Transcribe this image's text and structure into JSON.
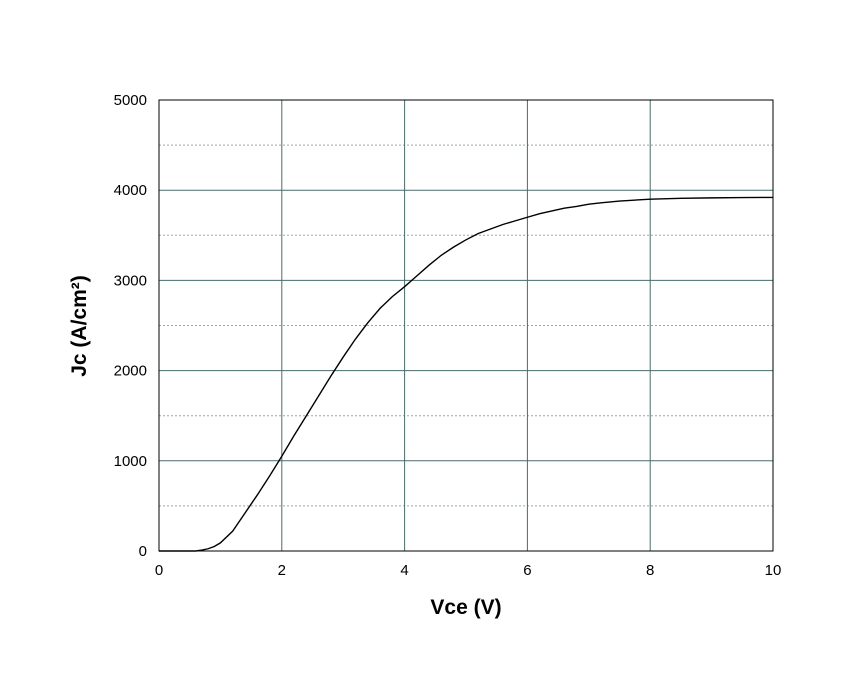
{
  "chart_data": {
    "type": "line",
    "title": "",
    "xlabel": "Vce (V)",
    "ylabel": "Jc (A/cm²)",
    "xlim": [
      0,
      10
    ],
    "ylim": [
      0,
      5000
    ],
    "x_ticks": [
      "0",
      "2",
      "4",
      "6",
      "8",
      "10"
    ],
    "y_ticks": [
      "0",
      "1000",
      "2000",
      "3000",
      "4000",
      "5000"
    ],
    "grid": {
      "major": true,
      "minor_horizontal_dotted": true
    },
    "legend": "none",
    "colors": {
      "line": "#000000",
      "grid_major": "#4a6b6b",
      "grid_minor": "#9aa6a6",
      "frame": "#000000"
    },
    "series": [
      {
        "x": [
          0,
          0.6,
          0.7,
          0.8,
          0.9,
          1.0,
          1.2,
          1.4,
          1.6,
          1.8,
          2.0,
          2.2,
          2.4,
          2.6,
          2.8,
          3.0,
          3.2,
          3.4,
          3.6,
          3.8,
          4.0,
          4.2,
          4.4,
          4.6,
          4.8,
          5.0,
          5.2,
          5.4,
          5.6,
          5.8,
          6.0,
          6.2,
          6.4,
          6.6,
          6.8,
          7.0,
          7.2,
          7.5,
          8.0,
          8.5,
          9.0,
          9.5,
          10.0
        ],
        "y": [
          0,
          0,
          10,
          25,
          50,
          90,
          220,
          420,
          620,
          830,
          1050,
          1280,
          1500,
          1720,
          1940,
          2150,
          2350,
          2530,
          2690,
          2820,
          2930,
          3050,
          3170,
          3280,
          3370,
          3450,
          3520,
          3570,
          3620,
          3660,
          3700,
          3740,
          3770,
          3800,
          3820,
          3845,
          3860,
          3880,
          3900,
          3910,
          3915,
          3918,
          3920
        ]
      }
    ]
  }
}
